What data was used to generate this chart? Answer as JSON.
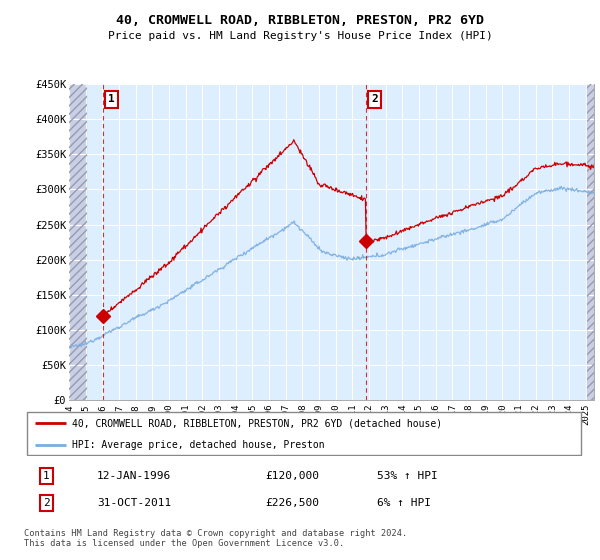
{
  "title": "40, CROMWELL ROAD, RIBBLETON, PRESTON, PR2 6YD",
  "subtitle": "Price paid vs. HM Land Registry's House Price Index (HPI)",
  "legend_line1": "40, CROMWELL ROAD, RIBBLETON, PRESTON, PR2 6YD (detached house)",
  "legend_line2": "HPI: Average price, detached house, Preston",
  "footer": "Contains HM Land Registry data © Crown copyright and database right 2024.\nThis data is licensed under the Open Government Licence v3.0.",
  "annotation1_label": "1",
  "annotation1_date": "12-JAN-1996",
  "annotation1_price": "£120,000",
  "annotation1_hpi": "53% ↑ HPI",
  "annotation2_label": "2",
  "annotation2_date": "31-OCT-2011",
  "annotation2_price": "£226,500",
  "annotation2_hpi": "6% ↑ HPI",
  "sale1_year": 1996.04,
  "sale1_price": 120000,
  "sale2_year": 2011.83,
  "sale2_price": 226500,
  "ylim": [
    0,
    450000
  ],
  "xlim_start": 1994.0,
  "xlim_end": 2025.5,
  "yticks": [
    0,
    50000,
    100000,
    150000,
    200000,
    250000,
    300000,
    350000,
    400000,
    450000
  ],
  "ytick_labels": [
    "£0",
    "£50K",
    "£100K",
    "£150K",
    "£200K",
    "£250K",
    "£300K",
    "£350K",
    "£400K",
    "£450K"
  ],
  "xtick_years": [
    1994,
    1995,
    1996,
    1997,
    1998,
    1999,
    2000,
    2001,
    2002,
    2003,
    2004,
    2005,
    2006,
    2007,
    2008,
    2009,
    2010,
    2011,
    2012,
    2013,
    2014,
    2015,
    2016,
    2017,
    2018,
    2019,
    2020,
    2021,
    2022,
    2023,
    2024,
    2025
  ],
  "red_color": "#cc0000",
  "blue_color": "#7aade0",
  "bg_blue": "#ddeeff",
  "grid_color": "#cccccc",
  "hatch_color": "#c8c8d8"
}
